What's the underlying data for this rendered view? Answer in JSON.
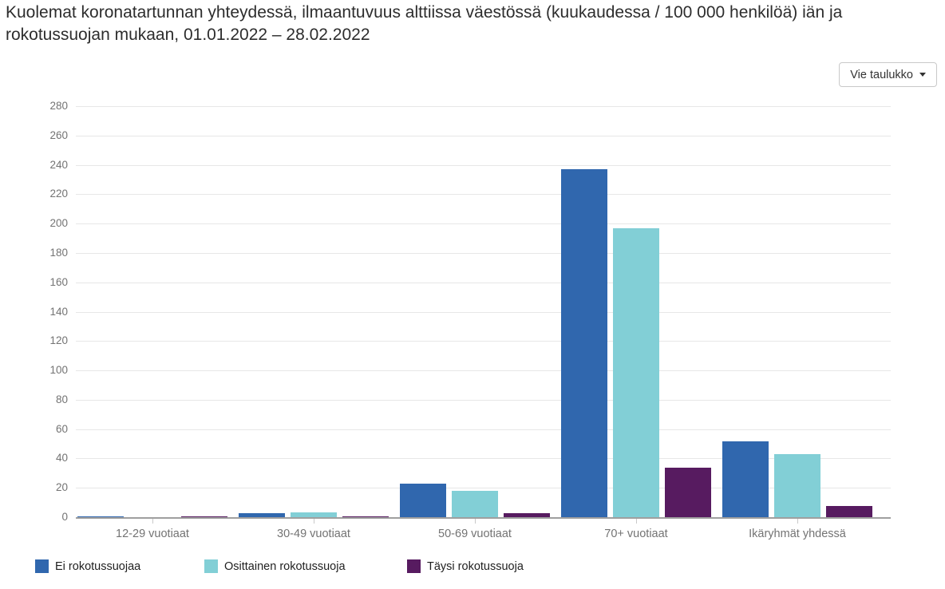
{
  "export_button": {
    "label": "Vie taulukko",
    "icon": "caret-down-icon"
  },
  "chart_data": {
    "type": "bar",
    "title": "Kuolemat koronatartunnan yhteydessä, ilmaantuvuus alttiissa väestössä (kuukaudessa / 100 000 henkilöä) iän ja rokotussuojan mukaan, 01.01.2022 – 28.02.2022",
    "categories": [
      "12-29 vuotiaat",
      "30-49 vuotiaat",
      "50-69 vuotiaat",
      "70+ vuotiaat",
      "Ikäryhmät yhdessä"
    ],
    "series": [
      {
        "name": "Ei rokotussuojaa",
        "color": "#3067ae",
        "values": [
          0.5,
          2.7,
          22.7,
          237.2,
          51.5
        ]
      },
      {
        "name": "Osittainen rokotussuoja",
        "color": "#82cfd6",
        "values": [
          0.1,
          3.2,
          18.1,
          196.8,
          42.9
        ]
      },
      {
        "name": "Täysi rokotussuoja",
        "color": "#571b60",
        "values": [
          0.4,
          0.6,
          2.5,
          33.6,
          7.6
        ]
      }
    ],
    "ylim": [
      0,
      280
    ],
    "ytick_step": 20,
    "xlabel": "",
    "ylabel": "",
    "grid": true,
    "legend_position": "bottom",
    "axis_colors": {
      "grid": "#e7e7e7",
      "baseline": "#9f9f9f",
      "tick_label": "#737373"
    }
  }
}
